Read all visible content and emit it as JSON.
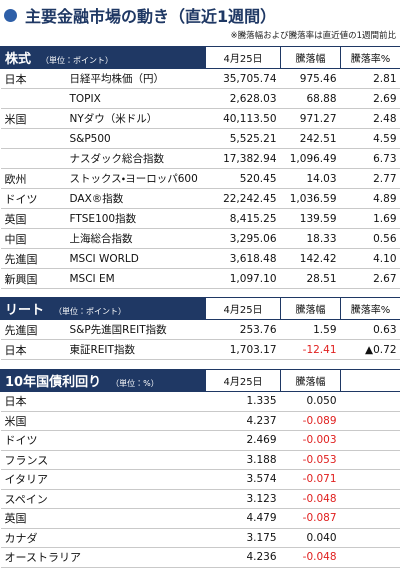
{
  "header": {
    "title": "主要金融市場の動き（直近1週間）",
    "note": "※騰落幅および騰落率は直近値の1週間前比"
  },
  "stocks": {
    "title": "株式",
    "unit": "（単位：ポイント）",
    "columns": [
      "4月25日",
      "騰落幅",
      "騰落率%"
    ],
    "rows": [
      [
        "日本",
        "日経平均株価（円）",
        "35,705.74",
        "975.46",
        "2.81"
      ],
      [
        null,
        "TOPIX",
        "2,628.03",
        "68.88",
        "2.69"
      ],
      [
        "米国",
        "NYダウ（米ドル）",
        "40,113.50",
        "971.27",
        "2.48"
      ],
      [
        null,
        "S&P500",
        "5,525.21",
        "242.51",
        "4.59"
      ],
      [
        null,
        "ナスダック総合指数",
        "17,382.94",
        "1,096.49",
        "6.73"
      ],
      [
        "欧州",
        "ストックス・ヨーロッパ600",
        "520.45",
        "14.03",
        "2.77"
      ],
      [
        "ドイツ",
        "DAX®指数",
        "22,242.45",
        "1,036.59",
        "4.89"
      ],
      [
        "英国",
        "FTSE100指数",
        "8,415.25",
        "139.59",
        "1.69"
      ],
      [
        "中国",
        "上海総合指数",
        "3,295.06",
        "18.33",
        "0.56"
      ],
      [
        "先進国",
        "MSCI WORLD",
        "3,618.48",
        "142.42",
        "4.10"
      ],
      [
        "新興国",
        "MSCI EM",
        "1,097.10",
        "28.51",
        "2.67"
      ]
    ]
  },
  "reit": {
    "title": "リート",
    "unit": "（単位：ポイント）",
    "columns": [
      "4月25日",
      "騰落幅",
      "騰落率%"
    ],
    "rows": [
      [
        "先進国",
        "S&P先進国REIT指数",
        "253.76",
        "1.59",
        "0.63"
      ],
      [
        "日本",
        "東証REIT指数",
        "1,703.17",
        "-12.41",
        "▲0.72"
      ]
    ]
  },
  "bonds": {
    "title": "10年国債利回り",
    "unit": "（単位：%）",
    "columns": [
      "4月25日",
      "騰落幅"
    ],
    "rows": [
      [
        "日本",
        "1.335",
        "0.050"
      ],
      [
        "米国",
        "4.237",
        "-0.089"
      ],
      [
        "ドイツ",
        "2.469",
        "-0.003"
      ],
      [
        "フランス",
        "3.188",
        "-0.053"
      ],
      [
        "イタリア",
        "3.574",
        "-0.071"
      ],
      [
        "スペイン",
        "3.123",
        "-0.048"
      ],
      [
        "英国",
        "4.479",
        "-0.087"
      ],
      [
        "カナダ",
        "3.175",
        "0.040"
      ],
      [
        "オーストラリア",
        "4.236",
        "-0.048"
      ]
    ]
  }
}
